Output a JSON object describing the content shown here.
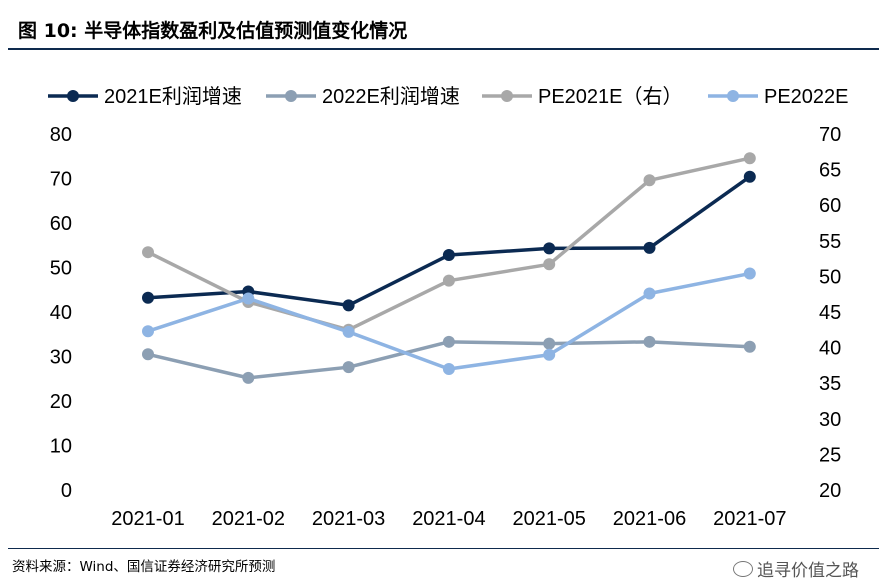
{
  "title": "图  10:  半导体指数盈利及估值预测值变化情况",
  "source": "资料来源：Wind、国信证券经济研究所预测",
  "watermark": "追寻价值之路",
  "watermark_icon": "wechat-icon",
  "chart_data": {
    "type": "line",
    "categories": [
      "2021-01",
      "2021-02",
      "2021-03",
      "2021-04",
      "2021-05",
      "2021-06",
      "2021-07"
    ],
    "left_axis": {
      "ticks": [
        0,
        10,
        20,
        30,
        40,
        50,
        60,
        70,
        80
      ],
      "ylim": [
        0,
        80
      ]
    },
    "right_axis": {
      "ticks": [
        20,
        25,
        30,
        35,
        40,
        45,
        50,
        55,
        60,
        65,
        70
      ],
      "ylim": [
        20,
        70
      ]
    },
    "grid": false,
    "legend_position": "top",
    "series": [
      {
        "name": "2021E利润增速",
        "axis": "left",
        "color": "#0b2a52",
        "values": [
          43.2,
          44.6,
          41.5,
          52.8,
          54.3,
          54.4,
          70.4
        ]
      },
      {
        "name": "2022E利润增速",
        "axis": "left",
        "color": "#8c9fb3",
        "values": [
          30.5,
          25.2,
          27.6,
          33.3,
          32.9,
          33.3,
          32.2
        ]
      },
      {
        "name": "PE2021E（右）",
        "axis": "right",
        "color": "#a8a8a8",
        "values": [
          53.4,
          46.4,
          42.5,
          49.4,
          51.7,
          63.5,
          66.6
        ]
      },
      {
        "name": "PE2022E",
        "axis": "right",
        "color": "#8eb4e3",
        "values": [
          42.3,
          46.9,
          42.2,
          37.0,
          39.0,
          47.6,
          50.4
        ]
      }
    ]
  }
}
